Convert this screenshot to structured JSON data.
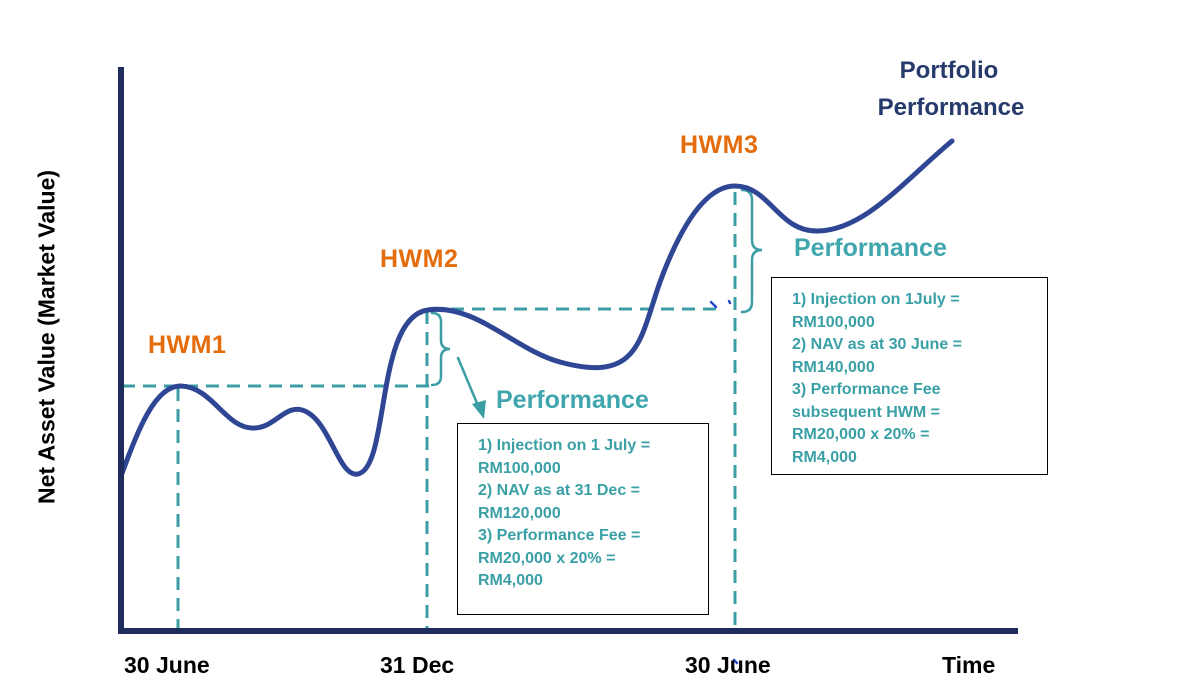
{
  "title": {
    "line1": "Portfolio",
    "line2": "Performance"
  },
  "axes": {
    "ylabel": "Net Asset Value (Market Value)",
    "x_ticks": [
      "30 June",
      "31 Dec",
      "30 June"
    ],
    "x_end_label": "Time"
  },
  "hwm_labels": [
    "HWM1",
    "HWM2",
    "HWM3"
  ],
  "performance_labels": [
    "Performance",
    "Performance"
  ],
  "notes": [
    {
      "lines": [
        "1) Injection on 1 July =",
        "RM100,000",
        "2) NAV as at 31 Dec =",
        "RM120,000",
        "3) Performance Fee =",
        "RM20,000 x 20% =",
        "RM4,000"
      ]
    },
    {
      "lines": [
        "1) Injection on 1July =",
        "RM100,000",
        "2) NAV as at 30 June =",
        "RM140,000",
        "3) Performance Fee",
        "subsequent HWM =",
        "RM20,000 x 20% =",
        "RM4,000"
      ]
    }
  ],
  "colors": {
    "curve": "#2e4694",
    "axis": "#1f2d5c",
    "dashed": "#3a9ea4",
    "hwm": "#e46c0a",
    "performance": "#3fa6ad",
    "note_text": "#3aa0a6",
    "title": "#263a6b"
  }
}
